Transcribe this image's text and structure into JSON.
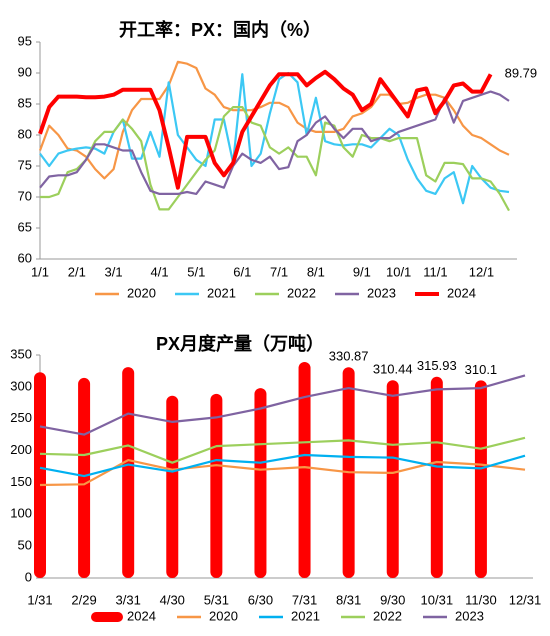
{
  "chart_data": [
    {
      "type": "line",
      "title": "开工率：PX：国内（%）",
      "categories": [
        "1/1",
        null,
        null,
        null,
        "2/1",
        null,
        null,
        null,
        "3/1",
        null,
        null,
        null,
        null,
        "4/1",
        null,
        null,
        null,
        "5/1",
        null,
        null,
        null,
        null,
        "6/1",
        null,
        null,
        null,
        "7/1",
        null,
        null,
        null,
        "8/1",
        null,
        null,
        null,
        null,
        "9/1",
        null,
        null,
        null,
        "10/1",
        null,
        null,
        null,
        "11/1",
        null,
        null,
        null,
        null,
        "12/1",
        null,
        null,
        null
      ],
      "ylim": [
        60,
        95
      ],
      "yticks": [
        60,
        65,
        70,
        75,
        80,
        85,
        90,
        95
      ],
      "series": [
        {
          "name": "2020",
          "color": "#f79646",
          "values": [
            77.5,
            81.5,
            80,
            77.8,
            77.5,
            76.5,
            74.5,
            73,
            74.5,
            80.5,
            84,
            85.8,
            85.8,
            85.8,
            88,
            91.8,
            91.5,
            90.8,
            87.5,
            86.5,
            84.5,
            84,
            84,
            84,
            84.5,
            85.2,
            85.2,
            84.5,
            82,
            81,
            80.5,
            80.5,
            80.5,
            81,
            83,
            83.5,
            84.5,
            86.5,
            86.5,
            85,
            85.2,
            86,
            86.5,
            86.5,
            86,
            84,
            81.5,
            80,
            79.5,
            78.5,
            77.5,
            76.8
          ]
        },
        {
          "name": "2021",
          "color": "#3cc8f4",
          "values": [
            77,
            75,
            77,
            77.5,
            77.8,
            78,
            77.8,
            77,
            80.5,
            82.5,
            76.2,
            76.2,
            80.5,
            76.5,
            88.5,
            80,
            78,
            76,
            75,
            82.5,
            82.5,
            75.5,
            89.8,
            75,
            77,
            83.5,
            89,
            90,
            88.5,
            80,
            86,
            79,
            78.5,
            78.3,
            78.5,
            78.5,
            78,
            79.5,
            81,
            80,
            76,
            73,
            71,
            70.5,
            73,
            74,
            69,
            75,
            73,
            71.5,
            71,
            70.8
          ]
        },
        {
          "name": "2022",
          "color": "#9ccf5c",
          "values": [
            70,
            70,
            70.5,
            74,
            74.5,
            76,
            79,
            80.5,
            80.5,
            82.5,
            81,
            79,
            72,
            68,
            68,
            70,
            72,
            74,
            76,
            77.5,
            83,
            84.5,
            84.5,
            82,
            81.5,
            78,
            77,
            78,
            76.5,
            76.5,
            73.5,
            82,
            81.5,
            78,
            76.5,
            80,
            79.5,
            79.5,
            79,
            79.5,
            79.5,
            79.5,
            73.5,
            72.5,
            75.5,
            75.5,
            75.3,
            73,
            73,
            72.5,
            70.5,
            67.8
          ]
        },
        {
          "name": "2023",
          "color": "#8064a2",
          "values": [
            71.5,
            73.3,
            73.5,
            73.5,
            74,
            76,
            78.5,
            78.5,
            78,
            77.5,
            77.5,
            74,
            71,
            70.5,
            70.5,
            70.5,
            70.8,
            70.5,
            72.5,
            72,
            71.5,
            75,
            77,
            76,
            75.5,
            76.5,
            74.5,
            74.8,
            79,
            80,
            82,
            83,
            81,
            79.5,
            81,
            81,
            79,
            79.5,
            79.5,
            80.5,
            81,
            81.5,
            82,
            82.5,
            86,
            82,
            85.5,
            86,
            86.5,
            87,
            86.5,
            85.5
          ]
        },
        {
          "name": "2024",
          "color": "#ff0000",
          "width": 4,
          "values": [
            80.2,
            84.5,
            86.2,
            86.2,
            86.2,
            86.1,
            86.1,
            86.2,
            86.5,
            87.3,
            87.3,
            87.3,
            87.3,
            84,
            78,
            71.5,
            79.7,
            79.7,
            79.7,
            75.5,
            73.5,
            75.5,
            80.5,
            83,
            85.5,
            88,
            89.8,
            89.8,
            89.8,
            88,
            89.2,
            90.2,
            89,
            87.5,
            86.5,
            84,
            85,
            89,
            87,
            85,
            83,
            87.2,
            87.5,
            83.5,
            85.5,
            88,
            88.3,
            87,
            87,
            89.79,
            null,
            null
          ],
          "value_labels": [
            null,
            null,
            null,
            null,
            null,
            null,
            null,
            null,
            null,
            null,
            null,
            null,
            null,
            null,
            null,
            null,
            null,
            null,
            null,
            null,
            null,
            null,
            null,
            null,
            null,
            null,
            null,
            null,
            null,
            null,
            null,
            null,
            null,
            null,
            null,
            null,
            null,
            null,
            null,
            null,
            null,
            null,
            null,
            null,
            null,
            null,
            null,
            null,
            null,
            "89.79",
            null,
            null
          ]
        }
      ]
    },
    {
      "type": "bar",
      "title": "PX月度产量（万吨）",
      "categories": [
        "1/31",
        "2/29",
        "3/31",
        "4/30",
        "5/31",
        "6/30",
        "7/31",
        "8/31",
        "9/30",
        "10/31",
        "11/30",
        "12/31"
      ],
      "ylim": [
        0,
        350
      ],
      "yticks": [
        0,
        50,
        100,
        150,
        200,
        250,
        300,
        350
      ],
      "series": [
        {
          "name": "2024",
          "color": "#ff0000",
          "type": "bar",
          "values": [
            323,
            314,
            331,
            286,
            289,
            298,
            339,
            330.87,
            310.44,
            315.93,
            310.1,
            null
          ],
          "value_labels": [
            null,
            null,
            null,
            null,
            null,
            null,
            null,
            "330.87",
            "310.44",
            "315.93",
            "310.1",
            null
          ]
        },
        {
          "name": "2020",
          "color": "#f79646",
          "type": "line",
          "values": [
            146,
            147,
            185,
            170,
            177,
            170,
            174,
            166,
            165,
            182,
            178,
            170
          ]
        },
        {
          "name": "2021",
          "color": "#00b0f0",
          "type": "line",
          "values": [
            173,
            160,
            178,
            167,
            185,
            181,
            193,
            190,
            189,
            175,
            172,
            192
          ]
        },
        {
          "name": "2022",
          "color": "#9ccf5c",
          "type": "line",
          "values": [
            195,
            193,
            208,
            181,
            207,
            210,
            213,
            216,
            209,
            213,
            203,
            220
          ]
        },
        {
          "name": "2023",
          "color": "#7f63a1",
          "type": "line",
          "values": [
            238,
            225,
            258,
            245,
            252,
            266,
            284,
            298,
            286,
            296,
            298,
            318
          ]
        }
      ]
    }
  ]
}
